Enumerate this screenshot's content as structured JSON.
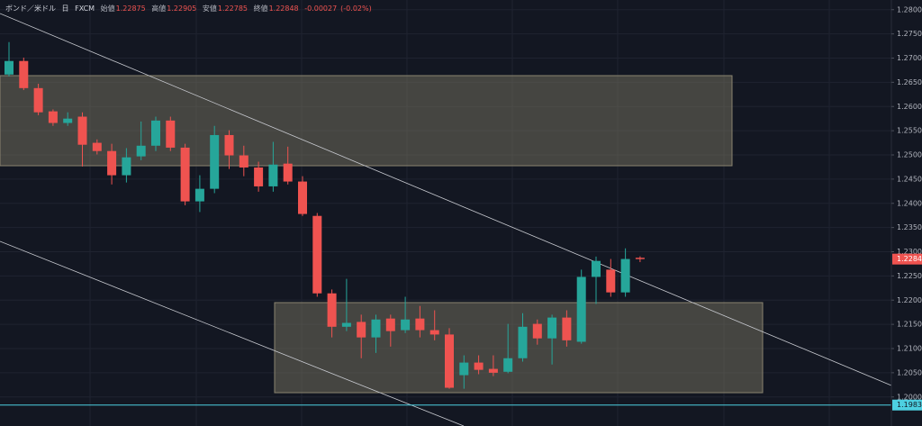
{
  "chart_data": {
    "type": "candlestick",
    "title": "ボンド／米ドル",
    "interval": "日",
    "source": "FXCM",
    "ohlc_labels": [
      "始値",
      "高値",
      "安値",
      "終値"
    ],
    "change": -0.00027,
    "change_percent": {
      "value": -0.02,
      "label": "(-0.02%)"
    },
    "up_color": "#26a69a",
    "down_color": "#ef5350",
    "open": [
      1.2666,
      1.2694,
      1.2638,
      1.259,
      1.2566,
      1.2579,
      1.2525,
      1.2508,
      1.2458,
      1.2497,
      1.2519,
      1.2571,
      1.2515,
      1.2404,
      1.243,
      1.2541,
      1.2499,
      1.2474,
      1.2435,
      1.2482,
      1.2445,
      1.2374,
      1.2214,
      1.2145,
      1.2155,
      1.2123,
      1.2162,
      1.2138,
      1.2162,
      1.2138,
      1.2129,
      1.2045,
      1.2071,
      1.2058,
      1.2052,
      1.208,
      1.2151,
      1.2121,
      1.2164,
      1.2114,
      1.2248,
      1.2263,
      1.2216,
      1.22875
    ],
    "high": [
      1.2733,
      1.2701,
      1.2647,
      1.2594,
      1.2588,
      1.2588,
      1.2532,
      1.2523,
      1.2514,
      1.2569,
      1.2579,
      1.2579,
      1.2523,
      1.2458,
      1.256,
      1.2551,
      1.2519,
      1.2486,
      1.2527,
      1.2517,
      1.2456,
      1.238,
      1.2222,
      1.2244,
      1.217,
      1.217,
      1.217,
      1.2207,
      1.2188,
      1.2179,
      1.2142,
      1.2086,
      1.2086,
      1.2086,
      1.2151,
      1.2173,
      1.216,
      1.217,
      1.2179,
      1.2263,
      1.229,
      1.2285,
      1.2307,
      1.22905
    ],
    "low": [
      1.2662,
      1.2634,
      1.2582,
      1.256,
      1.256,
      1.2476,
      1.2501,
      1.2439,
      1.2443,
      1.2489,
      1.2508,
      1.2508,
      1.2396,
      1.2382,
      1.2421,
      1.2471,
      1.2456,
      1.2424,
      1.2424,
      1.2439,
      1.2374,
      1.2207,
      1.2123,
      1.2136,
      1.208,
      1.2091,
      1.2104,
      1.2132,
      1.2123,
      1.2117,
      1.2017,
      1.2017,
      1.2047,
      1.2043,
      1.2049,
      1.2073,
      1.2108,
      1.2067,
      1.2104,
      1.211,
      1.2192,
      1.2207,
      1.2207,
      1.22785
    ],
    "close": [
      1.2694,
      1.2638,
      1.2588,
      1.2566,
      1.2575,
      1.2521,
      1.2508,
      1.2458,
      1.2495,
      1.2519,
      1.2571,
      1.2515,
      1.2404,
      1.243,
      1.2541,
      1.2499,
      1.2474,
      1.2435,
      1.248,
      1.2445,
      1.2378,
      1.2214,
      1.2145,
      1.2153,
      1.2123,
      1.216,
      1.2136,
      1.216,
      1.2138,
      1.2129,
      1.2019,
      1.2071,
      1.2056,
      1.205,
      1.208,
      1.2145,
      1.2121,
      1.2164,
      1.2117,
      1.2248,
      1.2281,
      1.2216,
      1.2285,
      1.22848
    ],
    "reference_line": 1.19833,
    "ylim": [
      1.194,
      1.282
    ],
    "yticks": [
      {
        "value": 1.28,
        "label": "1.28000"
      },
      {
        "value": 1.275,
        "label": "1.27500"
      },
      {
        "value": 1.27,
        "label": "1.27000"
      },
      {
        "value": 1.265,
        "label": "1.26500"
      },
      {
        "value": 1.26,
        "label": "1.26000"
      },
      {
        "value": 1.255,
        "label": "1.25500"
      },
      {
        "value": 1.25,
        "label": "1.25000"
      },
      {
        "value": 1.245,
        "label": "1.24500"
      },
      {
        "value": 1.24,
        "label": "1.24000"
      },
      {
        "value": 1.235,
        "label": "1.23500"
      },
      {
        "value": 1.23,
        "label": "1.23000"
      },
      {
        "value": 1.225,
        "label": "1.22500"
      },
      {
        "value": 1.22,
        "label": "1.22000"
      },
      {
        "value": 1.215,
        "label": "1.21500"
      },
      {
        "value": 1.21,
        "label": "1.21000"
      },
      {
        "value": 1.205,
        "label": "1.20500"
      },
      {
        "value": 1.2,
        "label": "1.20000"
      }
    ],
    "grid": true
  }
}
